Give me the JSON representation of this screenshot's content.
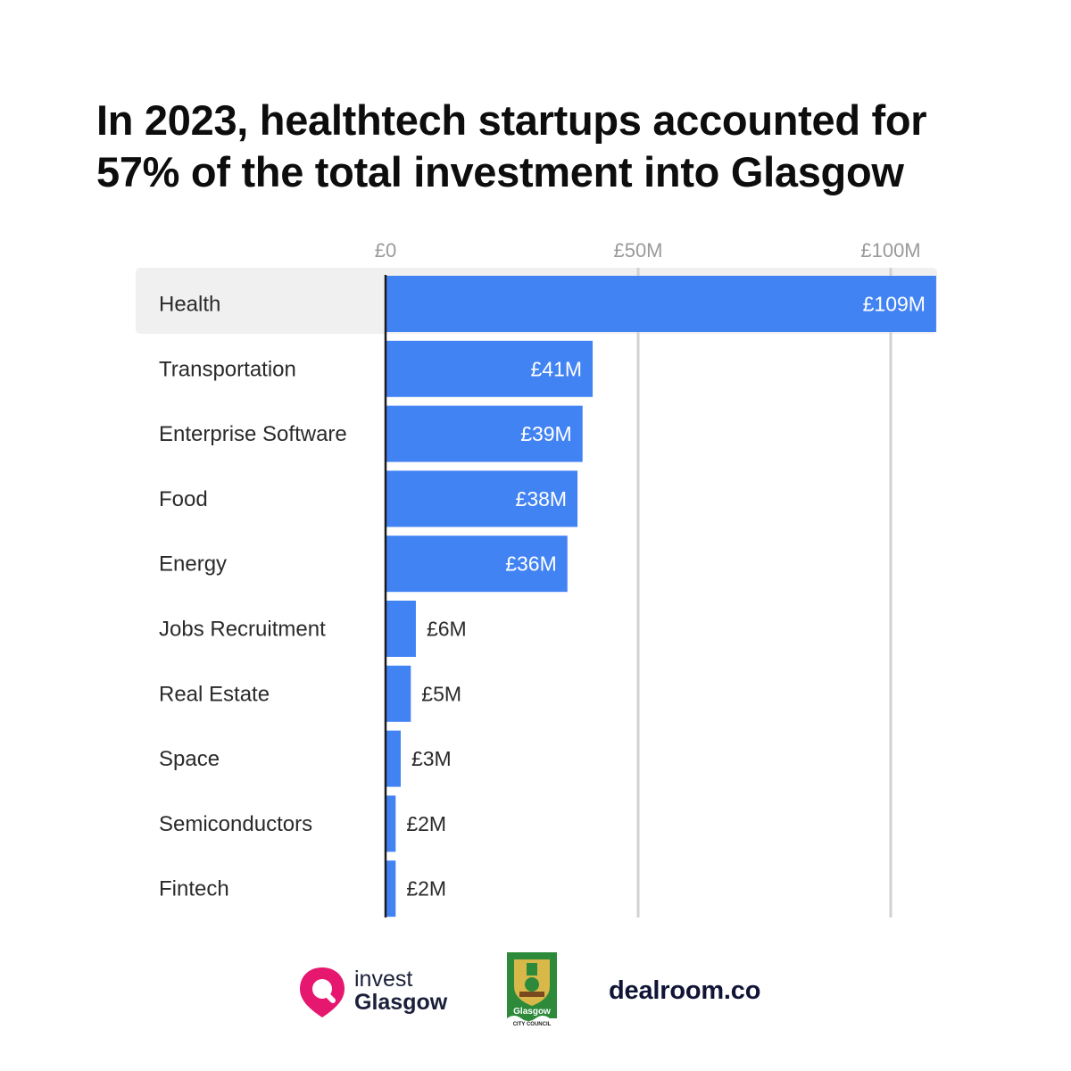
{
  "title": {
    "line1": "In 2023, healthtech startups accounted for",
    "line2": "57% of the total investment into Glasgow"
  },
  "chart_data": {
    "type": "bar",
    "orientation": "horizontal",
    "categories": [
      "Health",
      "Transportation",
      "Enterprise Software",
      "Food",
      "Energy",
      "Jobs Recruitment",
      "Real Estate",
      "Space",
      "Semiconductors",
      "Fintech"
    ],
    "values": [
      109,
      41,
      39,
      38,
      36,
      6,
      5,
      3,
      2,
      2
    ],
    "value_labels": [
      "£109M",
      "£41M",
      "£39M",
      "£38M",
      "£36M",
      "£6M",
      "£5M",
      "£3M",
      "£2M",
      "£2M"
    ],
    "units": "£M",
    "xticks": [
      0,
      50,
      100
    ],
    "xtick_labels": [
      "£0",
      "£50M",
      "£100M"
    ],
    "xlim": [
      0,
      109
    ],
    "highlighted_category": "Health",
    "grid": true,
    "bar_color": "#4283f4",
    "highlight_color": "#f0f0f0"
  },
  "logos": {
    "invest_line1": "invest",
    "invest_line2": "Glasgow",
    "council_name": "Glasgow",
    "council_sub": "CITY COUNCIL",
    "dealroom": "dealroom.co",
    "invest_color": "#e6176f",
    "council_green": "#2c8a3a"
  }
}
